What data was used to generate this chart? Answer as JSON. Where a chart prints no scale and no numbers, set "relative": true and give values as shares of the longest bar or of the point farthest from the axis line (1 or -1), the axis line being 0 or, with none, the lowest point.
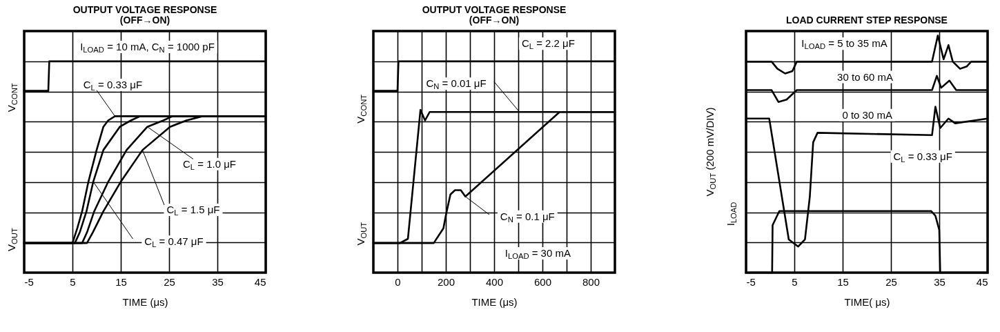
{
  "chart_data": [
    {
      "type": "line",
      "title": "OUTPUT VOLTAGE RESPONSE",
      "subtitle": "(OFF→ON)",
      "xlabel": "TIME (μs)",
      "relative": true,
      "grid": true,
      "xlim": [
        -5,
        45
      ],
      "xticks": [
        -5,
        5,
        15,
        25,
        35,
        45
      ],
      "series": [
        {
          "color": "#000000",
          "x": [
            -5,
            5,
            6,
            7,
            8.3,
            10,
            11.4,
            12.4,
            13.8,
            45
          ],
          "values": [
            0.14,
            0.14,
            0.21,
            0.29,
            0.43,
            0.58,
            0.69,
            0.72,
            0.74,
            0.74
          ]
        },
        {
          "color": "#000000",
          "x": [
            -5,
            5.5,
            6.5,
            7.9,
            9.3,
            11.4,
            14.8,
            17.1,
            19,
            45
          ],
          "values": [
            0.14,
            0.14,
            0.19,
            0.29,
            0.43,
            0.58,
            0.69,
            0.72,
            0.74,
            0.74
          ]
        },
        {
          "color": "#000000",
          "x": [
            -5,
            7,
            8,
            9.5,
            12.4,
            16.2,
            20.5,
            23.8,
            25.7,
            45
          ],
          "values": [
            0.14,
            0.14,
            0.19,
            0.29,
            0.43,
            0.58,
            0.69,
            0.72,
            0.74,
            0.74
          ]
        },
        {
          "color": "#000000",
          "x": [
            -5,
            8,
            9.2,
            11.4,
            15,
            19.5,
            25.2,
            28.6,
            31.9,
            45
          ],
          "values": [
            0.14,
            0.14,
            0.19,
            0.29,
            0.43,
            0.58,
            0.69,
            0.72,
            0.74,
            0.74
          ]
        },
        {
          "color": "#000000",
          "x": [
            -5,
            0,
            0.2,
            45
          ],
          "values": [
            0.86,
            0.86,
            1,
            1
          ]
        }
      ],
      "annotations": [
        "I$_{LOAD}$ = 10 mA, C$_{N}$ = 1000 pF",
        "V$_{CONT}$",
        "V$_{OUT}$",
        {
          "text": "C$_{L}$ = 0.33 μF",
          "x": 13.8,
          "y": 0.74
        },
        {
          "text": "C$_{L}$ = 1.0 μF",
          "x": 20.5,
          "y": 0.69
        },
        {
          "text": "C$_{L}$ = 1.5 μF",
          "x": 19.5,
          "y": 0.58
        },
        {
          "text": "C$_{L}$ = 0.47 μF",
          "x": 9.3,
          "y": 0.43
        }
      ]
    },
    {
      "type": "line",
      "title": "OUTPUT VOLTAGE RESPONSE",
      "subtitle": "(OFF→ON)",
      "xlabel": "TIME (μs)",
      "relative": true,
      "grid": true,
      "xlim": [
        -100,
        900
      ],
      "xticks": [
        0,
        200,
        400,
        600,
        800
      ],
      "series": [
        {
          "color": "#000000",
          "x": [
            -100,
            10,
            43,
            95,
            114,
            133,
            900
          ],
          "values": [
            0.14,
            0.14,
            0.16,
            0.77,
            0.72,
            0.76,
            0.76
          ]
        },
        {
          "color": "#000000",
          "x": [
            -100,
            150,
            190,
            200,
            219,
            238,
            262,
            281,
            671,
            900
          ],
          "values": [
            0.14,
            0.14,
            0.21,
            0.27,
            0.37,
            0.39,
            0.39,
            0.36,
            0.76,
            0.76
          ]
        },
        {
          "color": "#000000",
          "x": [
            -100,
            0,
            4,
            900
          ],
          "values": [
            0.86,
            0.86,
            1,
            1
          ]
        }
      ],
      "annotations": [
        "C$_{L}$ = 2.2 μF",
        "I$_{LOAD}$ = 30 mA",
        "V$_{CONT}$",
        "V$_{OUT}$",
        {
          "text": "C$_{N}$ = 0.01 μF",
          "x": 505,
          "y": 0.76
        },
        {
          "text": "C$_{N}$ = 0.1 μF",
          "x": 281,
          "y": 0.36
        }
      ]
    },
    {
      "type": "line",
      "title": "LOAD CURRENT STEP RESPONSE",
      "xlabel": "TIME( μs)",
      "ylabel": "V$_{OUT}$ (200 mV/DIV)",
      "relative": true,
      "grid": true,
      "xlim": [
        -5,
        45
      ],
      "xticks": [
        -5,
        5,
        15,
        25,
        35,
        45
      ],
      "series": [
        {
          "color": "#000000",
          "x": [
            -5,
            0.3,
            1.5,
            3.1,
            4.6,
            5.5,
            33.5,
            34.7,
            35.9,
            36.9,
            37.8,
            39.3,
            40.7,
            41.6,
            45
          ],
          "values": [
            0.89,
            0.89,
            0.86,
            0.84,
            0.85,
            0.89,
            0.89,
            1,
            0.9,
            0.96,
            0.89,
            0.86,
            0.87,
            0.89,
            0.89
          ]
        },
        {
          "color": "#000000",
          "x": [
            -5,
            0.3,
            1.7,
            3.4,
            5.5,
            33.5,
            34.5,
            35.4,
            37.1,
            38.5,
            45
          ],
          "values": [
            0.77,
            0.77,
            0.72,
            0.73,
            0.77,
            0.77,
            0.83,
            0.78,
            0.81,
            0.77,
            0.77
          ]
        },
        {
          "color": "#000000",
          "x": [
            -5,
            -0.2,
            3.85,
            5.8,
            7.2,
            8.2,
            8.9,
            9.8,
            33.5,
            34.2,
            35.2,
            36.9,
            38.3,
            45
          ],
          "values": [
            0.65,
            0.65,
            0.14,
            0.11,
            0.14,
            0.32,
            0.55,
            0.59,
            0.58,
            0.7,
            0.61,
            0.65,
            0.63,
            0.65
          ]
        },
        {
          "color": "#000000",
          "x": [
            -5,
            0.4,
            0.5,
            1.9,
            33.3,
            34.2,
            35,
            35.2,
            45
          ],
          "values": [
            0,
            0,
            0.2,
            0.26,
            0.26,
            0.24,
            0.18,
            0,
            0
          ]
        }
      ],
      "annotations": [
        "I$_{LOAD}$ = 5 to 35 mA",
        "30 to 60 mA",
        "0 to 30 mA",
        "C$_{L}$ = 0.33 μF",
        "I$_{LOAD}$"
      ]
    }
  ]
}
